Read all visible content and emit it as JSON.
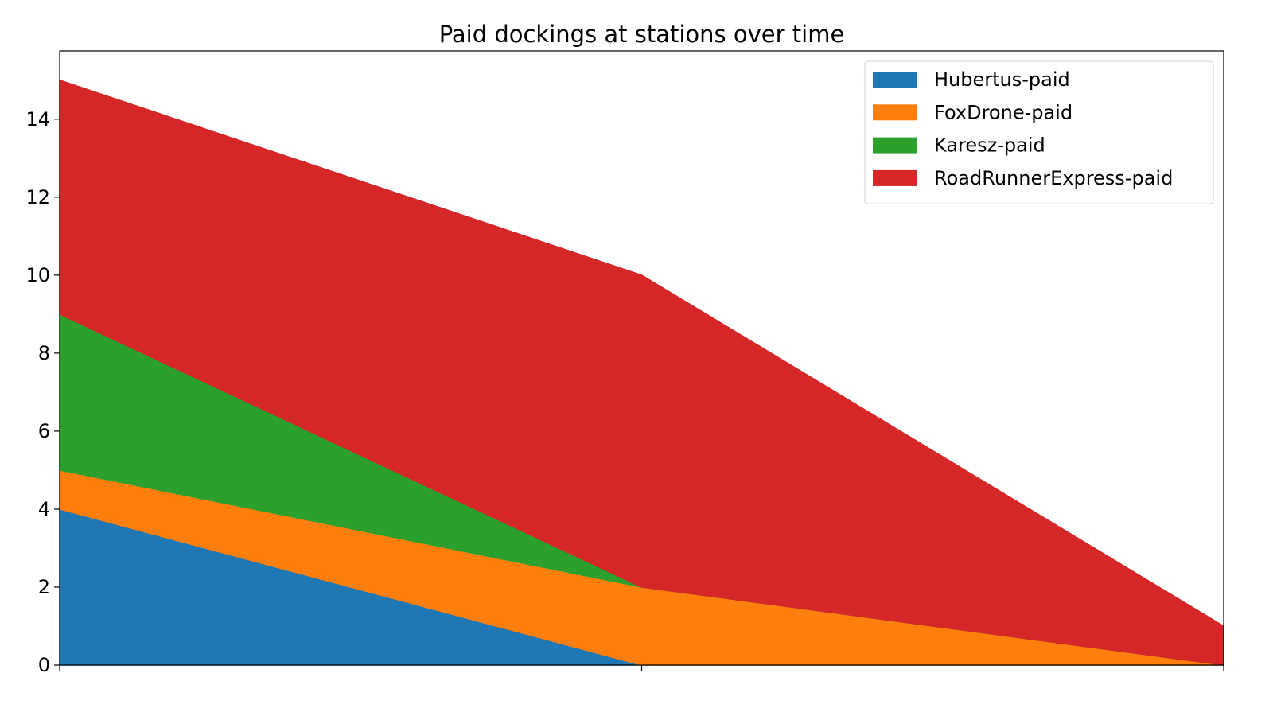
{
  "chart_data": {
    "type": "area",
    "stacked": true,
    "title": "Paid dockings at stations over time",
    "xlabel": "",
    "ylabel": "",
    "x": [
      0,
      1,
      2
    ],
    "x_tick_labels": [
      "",
      "",
      ""
    ],
    "xlim": [
      0,
      2
    ],
    "ylim": [
      0,
      15.75
    ],
    "y_ticks": [
      0,
      2,
      4,
      6,
      8,
      10,
      12,
      14
    ],
    "grid": false,
    "legend_position": "upper right",
    "series": [
      {
        "name": "Hubertus-paid",
        "color": "#1f77b4",
        "values": [
          4,
          0,
          0
        ]
      },
      {
        "name": "FoxDrone-paid",
        "color": "#ff7f0e",
        "values": [
          1,
          2,
          0
        ]
      },
      {
        "name": "Karesz-paid",
        "color": "#2ca02c",
        "values": [
          4,
          0,
          0
        ]
      },
      {
        "name": "RoadRunnerExpress-paid",
        "color": "#d62728",
        "values": [
          6,
          8,
          1
        ]
      }
    ]
  }
}
